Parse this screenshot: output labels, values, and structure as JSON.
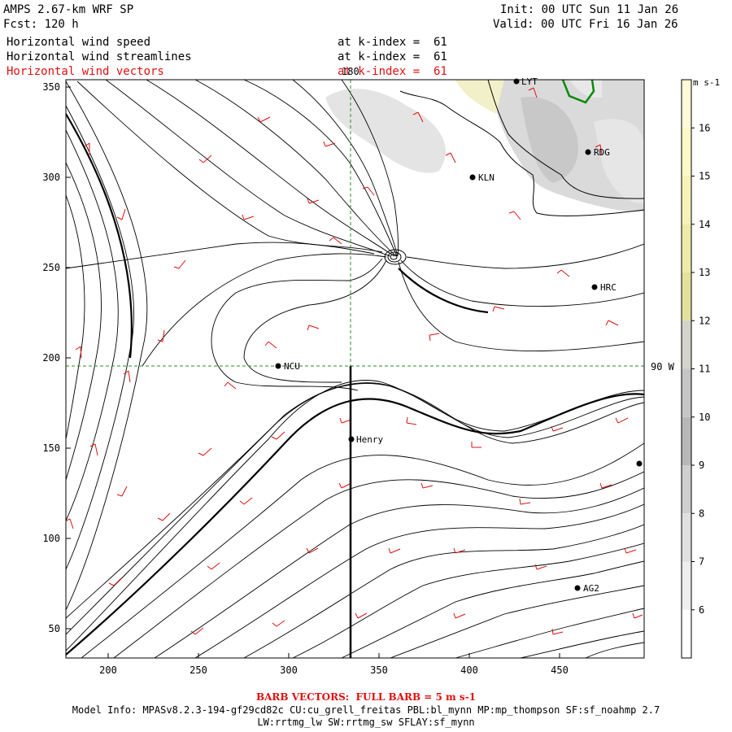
{
  "header": {
    "model": "AMPS 2.67-km WRF SP",
    "fcst": "Fcst: 120 h",
    "init": "Init: 00 UTC Sun 11 Jan 26",
    "valid": "Valid: 00 UTC Fri 16 Jan 26",
    "fields": [
      {
        "name": "Horizontal wind speed",
        "level": "at k-index =  61"
      },
      {
        "name": "Horizontal wind streamlines",
        "level": "at k-index =  61"
      },
      {
        "name": "Horizontal wind vectors",
        "level": "at k-index =  61"
      }
    ]
  },
  "map": {
    "x_ticks": [
      "200",
      "250",
      "300",
      "350",
      "400",
      "450"
    ],
    "y_ticks": [
      "350",
      "300",
      "250",
      "200",
      "150",
      "100",
      "50"
    ],
    "grid_labels": {
      "meridian": "180",
      "parallel": "90 W"
    },
    "stations": [
      {
        "name": "LYT"
      },
      {
        "name": "RDG"
      },
      {
        "name": "KLN"
      },
      {
        "name": "HRC"
      },
      {
        "name": "NCU"
      },
      {
        "name": "Henry"
      },
      {
        "name": "AG2"
      },
      {
        "name": ""
      }
    ]
  },
  "colorbar": {
    "unit": "m s-1",
    "labels": [
      "16",
      "15",
      "14",
      "13",
      "12",
      "11",
      "10",
      "9",
      "8",
      "7",
      "6"
    ],
    "colors": [
      "#fffbd8",
      "#fdf8c8",
      "#f7f2b8",
      "#eeeaa8",
      "#e4e19c",
      "#d4d4cc",
      "#c6c6c6",
      "#b8b8b8",
      "#cfcfcf",
      "#e0e0e0",
      "#eeeeee",
      "#ffffff"
    ]
  },
  "footer": {
    "barb": "BARB VECTORS:  FULL BARB = 5 m s-1",
    "model_info": "Model Info: MPASv8.2.3-194-gf29cd82c CU:cu_grell_freitas PBL:bl_mynn MP:mp_thompson SF:sf_noahmp 2.7",
    "model_info2": "LW:rrtmg_lw SW:rrtmg_sw SFLAY:sf_mynn"
  }
}
